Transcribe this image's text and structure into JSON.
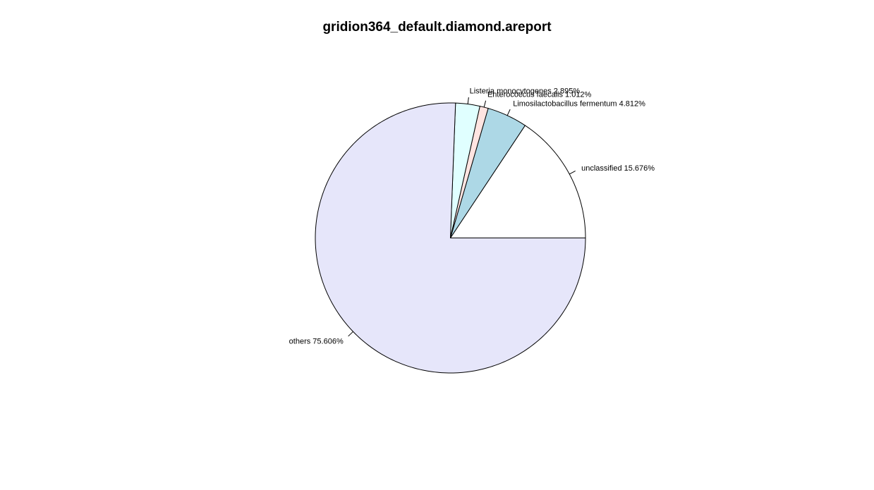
{
  "chart_data": {
    "type": "pie",
    "title": "gridion364_default.diamond.areport",
    "slices": [
      {
        "label": "unclassified 15.676%",
        "value": 15.676,
        "color": "#ffffff"
      },
      {
        "label": "Limosilactobacillus fermentum 4.812%",
        "value": 4.812,
        "color": "#add8e6"
      },
      {
        "label": "Enterococcus faecalis 1.012%",
        "value": 1.012,
        "color": "#ffe4e1"
      },
      {
        "label": "Listeria monocytogenes 2.895%",
        "value": 2.895,
        "color": "#e0ffff"
      },
      {
        "label": "others 75.606%",
        "value": 75.606,
        "color": "#e6e6fa"
      }
    ],
    "direction": "counterclockwise",
    "start_angle_deg": 0
  }
}
